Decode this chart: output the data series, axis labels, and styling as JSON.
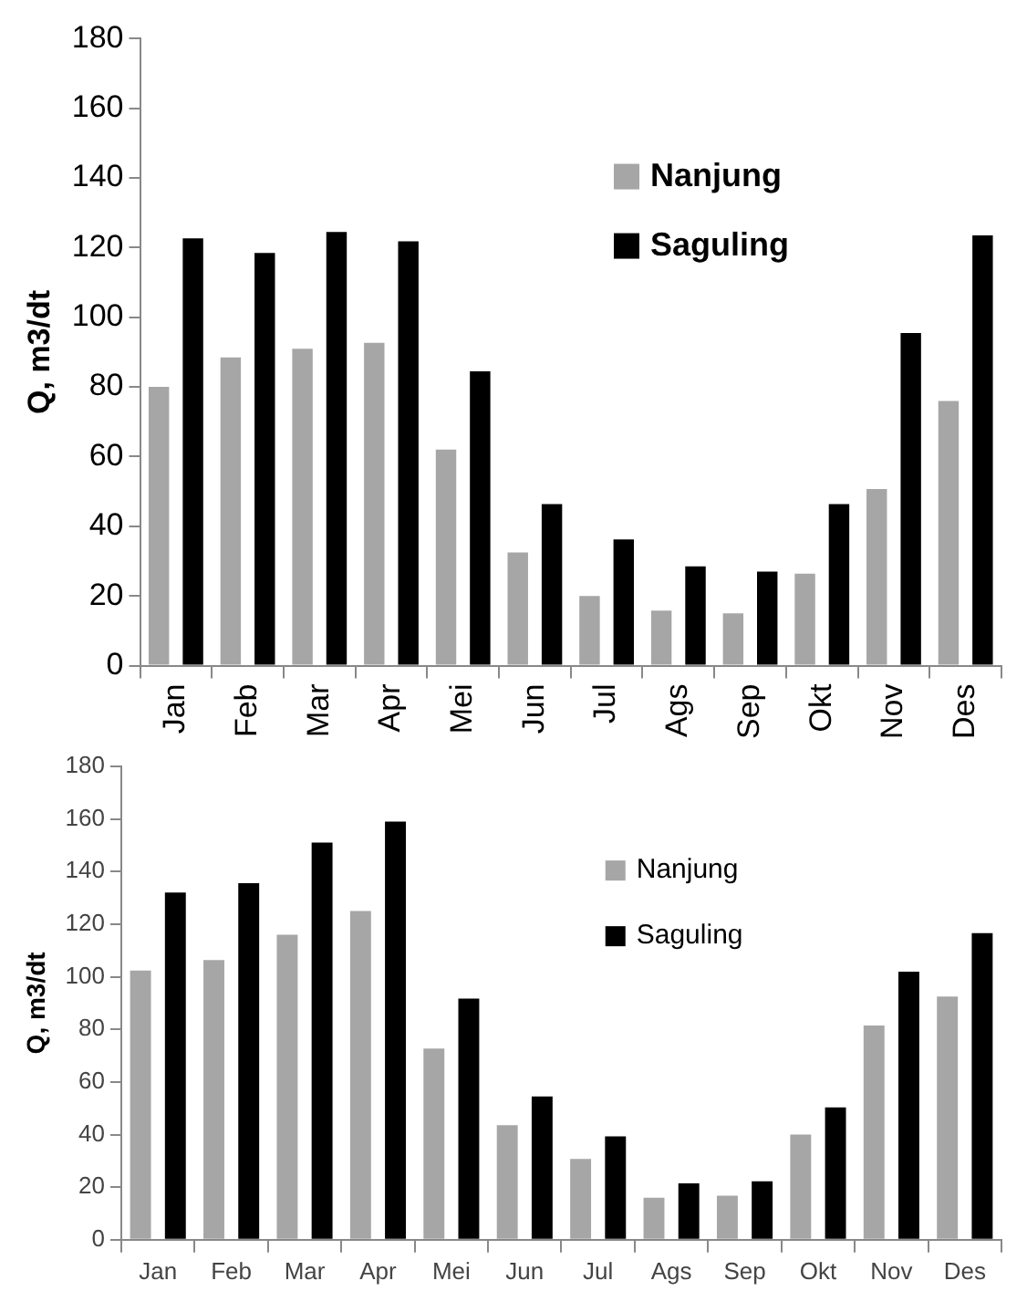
{
  "chart_data": [
    {
      "type": "bar",
      "ylabel": "Q, m3/dt",
      "categories": [
        "Jan",
        "Feb",
        "Mar",
        "Apr",
        "Mei",
        "Jun",
        "Jul",
        "Ags",
        "Sep",
        "Okt",
        "Nov",
        "Des"
      ],
      "series": [
        {
          "name": "Nanjung",
          "color": "#a6a6a6",
          "values": [
            80,
            88.5,
            91,
            92.7,
            62,
            32.5,
            20,
            15.8,
            15,
            26.4,
            50.7,
            76
          ]
        },
        {
          "name": "Saguling",
          "color": "#000000",
          "values": [
            122.7,
            118.5,
            124.5,
            121.8,
            84.5,
            46.4,
            36.2,
            28.5,
            27,
            46.4,
            95.5,
            123.5
          ]
        }
      ],
      "ylim": [
        0,
        180
      ],
      "yticks": [
        0,
        20,
        40,
        60,
        80,
        100,
        120,
        140,
        160,
        180
      ],
      "grid": false,
      "legend": "top right"
    },
    {
      "type": "bar",
      "ylabel": "Q, m3/dt",
      "categories": [
        "Jan",
        "Feb",
        "Mar",
        "Apr",
        "Mei",
        "Jun",
        "Jul",
        "Ags",
        "Sep",
        "Okt",
        "Nov",
        "Des"
      ],
      "series": [
        {
          "name": "Nanjung",
          "color": "#a6a6a6",
          "values": [
            102.4,
            106.4,
            116,
            125,
            72.7,
            43.6,
            30.7,
            16,
            16.8,
            40,
            81.5,
            92.5
          ]
        },
        {
          "name": "Saguling",
          "color": "#000000",
          "values": [
            132,
            135.6,
            151,
            159,
            91.7,
            54.5,
            39.3,
            21.4,
            22.2,
            50.3,
            101.9,
            116.6
          ]
        }
      ],
      "ylim": [
        0,
        180
      ],
      "yticks": [
        0,
        20,
        40,
        60,
        80,
        100,
        120,
        140,
        160,
        180
      ],
      "grid": false,
      "legend": "top right"
    }
  ]
}
